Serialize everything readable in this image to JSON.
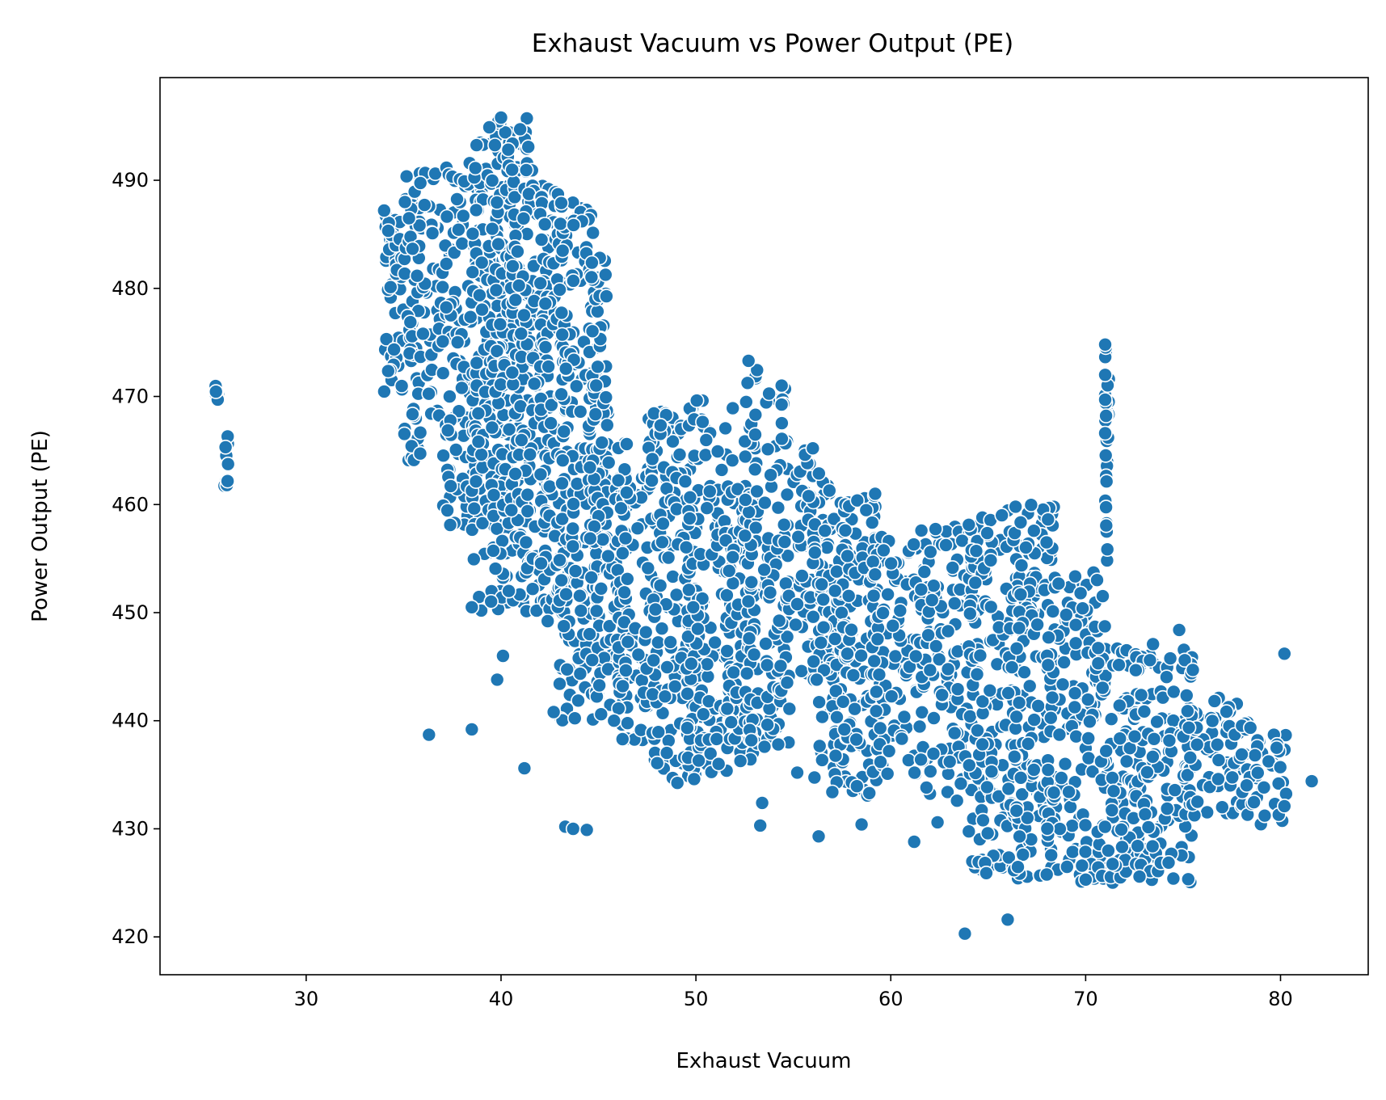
{
  "chart_data": {
    "type": "scatter",
    "title": "Exhaust Vacuum vs Power Output (PE)",
    "xlabel": "Exhaust Vacuum",
    "ylabel": "Power Output (PE)",
    "xlim": [
      22.5,
      84.5
    ],
    "ylim": [
      416.5,
      499.5
    ],
    "xticks": [
      30,
      40,
      50,
      60,
      70,
      80
    ],
    "yticks": [
      420,
      430,
      440,
      450,
      460,
      470,
      480,
      490
    ],
    "grid": false,
    "legend": "none",
    "marker_color": "#1f77b4",
    "clusters": [
      {
        "x": [
          25.3,
          25.5
        ],
        "y": [
          469.5,
          471
        ]
      },
      {
        "x": [
          25.8,
          26.0
        ],
        "y": [
          461,
          466.5
        ]
      },
      {
        "x": [
          34,
          35
        ],
        "y": [
          469,
          487
        ]
      },
      {
        "x": [
          35,
          37
        ],
        "y": [
          464,
          491
        ]
      },
      {
        "x": [
          37,
          39
        ],
        "y": [
          458,
          492
        ]
      },
      {
        "x": [
          38.5,
          40.5
        ],
        "y": [
          450,
          494
        ]
      },
      {
        "x": [
          39.5,
          41.5
        ],
        "y": [
          455,
          496
        ]
      },
      {
        "x": [
          40.5,
          42.5
        ],
        "y": [
          450,
          491
        ]
      },
      {
        "x": [
          42,
          43.5
        ],
        "y": [
          449,
          489
        ]
      },
      {
        "x": [
          43,
          45
        ],
        "y": [
          440,
          488
        ]
      },
      {
        "x": [
          44.5,
          45.5
        ],
        "y": [
          455,
          483
        ]
      },
      {
        "x": [
          44.5,
          46.5
        ],
        "y": [
          440,
          466
        ]
      },
      {
        "x": [
          46,
          48
        ],
        "y": [
          438,
          464
        ]
      },
      {
        "x": [
          47.5,
          50.2
        ],
        "y": [
          434,
          469
        ]
      },
      {
        "x": [
          49.5,
          52
        ],
        "y": [
          435,
          470
        ]
      },
      {
        "x": [
          51.5,
          53
        ],
        "y": [
          436,
          462
        ]
      },
      {
        "x": [
          52.5,
          53.2
        ],
        "y": [
          437,
          473
        ]
      },
      {
        "x": [
          53.5,
          54.8
        ],
        "y": [
          437,
          471
        ]
      },
      {
        "x": [
          55,
          57
        ],
        "y": [
          444,
          465
        ]
      },
      {
        "x": [
          56,
          58
        ],
        "y": [
          434,
          459
        ]
      },
      {
        "x": [
          57,
          59.5
        ],
        "y": [
          433,
          461
        ]
      },
      {
        "x": [
          59,
          62
        ],
        "y": [
          435,
          457
        ]
      },
      {
        "x": [
          61.5,
          64.5
        ],
        "y": [
          433,
          458
        ]
      },
      {
        "x": [
          64,
          66.8
        ],
        "y": [
          426,
          459
        ]
      },
      {
        "x": [
          66,
          68.5
        ],
        "y": [
          425,
          460
        ]
      },
      {
        "x": [
          68,
          71
        ],
        "y": [
          425,
          454
        ]
      },
      {
        "x": [
          70.5,
          73
        ],
        "y": [
          425,
          447
        ]
      },
      {
        "x": [
          72.5,
          75.5
        ],
        "y": [
          425,
          448
        ]
      },
      {
        "x": [
          75,
          78
        ],
        "y": [
          430,
          443
        ]
      },
      {
        "x": [
          77.5,
          80.3
        ],
        "y": [
          430,
          440
        ]
      },
      {
        "x": [
          71.0,
          71.2
        ],
        "y": [
          454,
          475
        ]
      }
    ],
    "points": [
      {
        "x": 81.6,
        "y": 434.4
      },
      {
        "x": 80.2,
        "y": 446.2
      },
      {
        "x": 63.8,
        "y": 420.3
      },
      {
        "x": 66.0,
        "y": 421.6
      },
      {
        "x": 36.3,
        "y": 438.7
      },
      {
        "x": 38.5,
        "y": 439.2
      },
      {
        "x": 39.8,
        "y": 443.8
      },
      {
        "x": 40.1,
        "y": 446.0
      },
      {
        "x": 41.2,
        "y": 435.6
      },
      {
        "x": 43.3,
        "y": 430.2
      },
      {
        "x": 43.7,
        "y": 430.0
      },
      {
        "x": 44.4,
        "y": 429.9
      },
      {
        "x": 53.3,
        "y": 430.3
      },
      {
        "x": 53.4,
        "y": 432.4
      },
      {
        "x": 56.3,
        "y": 429.3
      },
      {
        "x": 58.5,
        "y": 430.4
      },
      {
        "x": 61.2,
        "y": 428.8
      },
      {
        "x": 62.4,
        "y": 430.6
      },
      {
        "x": 63.4,
        "y": 432.6
      },
      {
        "x": 73.3,
        "y": 445.6
      },
      {
        "x": 71.0,
        "y": 474.8
      },
      {
        "x": 71.0,
        "y": 472.0
      },
      {
        "x": 71.0,
        "y": 469.7
      },
      {
        "x": 71.0,
        "y": 466.6
      },
      {
        "x": 52.7,
        "y": 473.3
      },
      {
        "x": 54.4,
        "y": 471.0
      },
      {
        "x": 34.0,
        "y": 487.2
      },
      {
        "x": 40.0,
        "y": 495.8
      },
      {
        "x": 39.4,
        "y": 494.9
      },
      {
        "x": 55.6,
        "y": 464.6
      },
      {
        "x": 56.0,
        "y": 465.2
      },
      {
        "x": 59.2,
        "y": 461.0
      },
      {
        "x": 65.7,
        "y": 459.0
      },
      {
        "x": 66.4,
        "y": 459.8
      },
      {
        "x": 69.0,
        "y": 449.8
      },
      {
        "x": 74.8,
        "y": 448.4
      },
      {
        "x": 79.8,
        "y": 437.5
      },
      {
        "x": 80.2,
        "y": 432.1
      },
      {
        "x": 57.0,
        "y": 433.4
      },
      {
        "x": 58.9,
        "y": 433.3
      },
      {
        "x": 40.4,
        "y": 452.0
      },
      {
        "x": 38.5,
        "y": 450.5
      },
      {
        "x": 64.9,
        "y": 425.9
      },
      {
        "x": 70.0,
        "y": 425.3
      },
      {
        "x": 74.5,
        "y": 425.4
      },
      {
        "x": 56.2,
        "y": 443.8
      },
      {
        "x": 55.2,
        "y": 435.2
      },
      {
        "x": 54.8,
        "y": 441.1
      },
      {
        "x": 42.7,
        "y": 440.8
      },
      {
        "x": 45.8,
        "y": 440.0
      }
    ]
  }
}
